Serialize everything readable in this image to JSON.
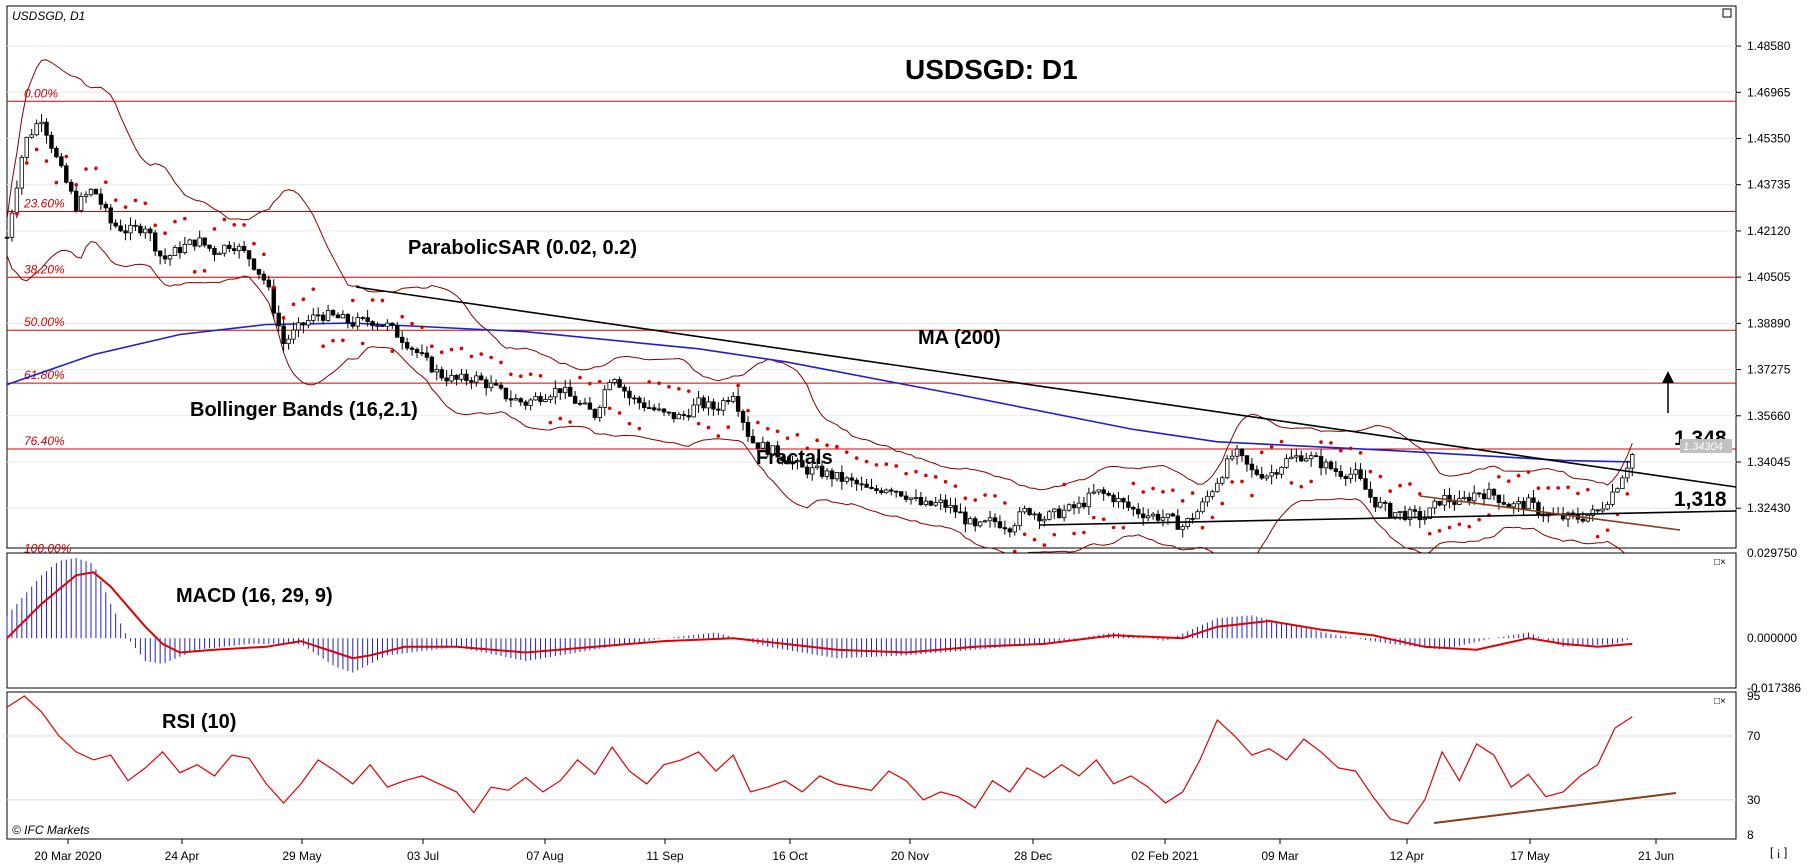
{
  "chart_data": [
    {
      "type": "candlestick",
      "title": "USDSGD: D1",
      "symbol_label": "USDSGD, D1",
      "y_ticks": [
        "1.48580",
        "1.46965",
        "1.45350",
        "1.43735",
        "1.42120",
        "1.40505",
        "1.38890",
        "1.37275",
        "1.35660",
        "1.34045",
        "1.32430"
      ],
      "ylim": [
        1.3104,
        1.4998
      ],
      "x_ticks": [
        "20 Mar 2020",
        "24 Apr",
        "29 May",
        "03 Jul",
        "07 Aug",
        "11 Sep",
        "16 Oct",
        "20 Nov",
        "28 Dec",
        "02 Feb 2021",
        "09 Mar",
        "12 Apr",
        "17 May",
        "21 Jun"
      ],
      "current_price": "1.34304",
      "fibonacci_levels": [
        {
          "label": "0.00%",
          "value": 1.4665
        },
        {
          "label": "23.60%",
          "value": 1.428
        },
        {
          "label": "38.20%",
          "value": 1.405
        },
        {
          "label": "50.00%",
          "value": 1.3865
        },
        {
          "label": "61.80%",
          "value": 1.368
        },
        {
          "label": "76.40%",
          "value": 1.345
        },
        {
          "label": "100.00%",
          "value": 1.3075
        }
      ],
      "indicators": {
        "parabolic_sar": "ParabolicSAR (0.02, 0.2)",
        "moving_average": "MA (200)",
        "bollinger": "Bollinger Bands (16,2.1)",
        "fractals": "Fractals"
      },
      "annotations": {
        "resistance": "1,348",
        "support": "1,318"
      },
      "price_path": [
        [
          0,
          1.419
        ],
        [
          0.01,
          1.452
        ],
        [
          0.02,
          1.461
        ],
        [
          0.03,
          1.444
        ],
        [
          0.04,
          1.43
        ],
        [
          0.05,
          1.436
        ],
        [
          0.06,
          1.424
        ],
        [
          0.07,
          1.421
        ],
        [
          0.08,
          1.423
        ],
        [
          0.09,
          1.411
        ],
        [
          0.1,
          1.415
        ],
        [
          0.11,
          1.418
        ],
        [
          0.12,
          1.414
        ],
        [
          0.13,
          1.417
        ],
        [
          0.14,
          1.412
        ],
        [
          0.15,
          1.403
        ],
        [
          0.16,
          1.382
        ],
        [
          0.17,
          1.388
        ],
        [
          0.18,
          1.392
        ],
        [
          0.19,
          1.391
        ],
        [
          0.2,
          1.389
        ],
        [
          0.21,
          1.39
        ],
        [
          0.22,
          1.388
        ],
        [
          0.23,
          1.383
        ],
        [
          0.24,
          1.377
        ],
        [
          0.25,
          1.371
        ],
        [
          0.26,
          1.369
        ],
        [
          0.27,
          1.37
        ],
        [
          0.28,
          1.367
        ],
        [
          0.29,
          1.363
        ],
        [
          0.3,
          1.361
        ],
        [
          0.31,
          1.364
        ],
        [
          0.32,
          1.366
        ],
        [
          0.33,
          1.361
        ],
        [
          0.34,
          1.357
        ],
        [
          0.35,
          1.372
        ],
        [
          0.36,
          1.363
        ],
        [
          0.37,
          1.36
        ],
        [
          0.38,
          1.357
        ],
        [
          0.39,
          1.356
        ],
        [
          0.4,
          1.361
        ],
        [
          0.41,
          1.359
        ],
        [
          0.42,
          1.365
        ],
        [
          0.43,
          1.348
        ],
        [
          0.44,
          1.345
        ],
        [
          0.45,
          1.342
        ],
        [
          0.46,
          1.338
        ],
        [
          0.47,
          1.337
        ],
        [
          0.48,
          1.335
        ],
        [
          0.49,
          1.333
        ],
        [
          0.5,
          1.33
        ],
        [
          0.51,
          1.332
        ],
        [
          0.52,
          1.329
        ],
        [
          0.53,
          1.325
        ],
        [
          0.54,
          1.326
        ],
        [
          0.55,
          1.323
        ],
        [
          0.56,
          1.317
        ],
        [
          0.57,
          1.32
        ],
        [
          0.58,
          1.318
        ],
        [
          0.59,
          1.324
        ],
        [
          0.6,
          1.321
        ],
        [
          0.61,
          1.323
        ],
        [
          0.62,
          1.325
        ],
        [
          0.63,
          1.33
        ],
        [
          0.64,
          1.328
        ],
        [
          0.65,
          1.324
        ],
        [
          0.66,
          1.322
        ],
        [
          0.67,
          1.321
        ],
        [
          0.68,
          1.318
        ],
        [
          0.69,
          1.324
        ],
        [
          0.7,
          1.334
        ],
        [
          0.71,
          1.344
        ],
        [
          0.72,
          1.337
        ],
        [
          0.73,
          1.336
        ],
        [
          0.74,
          1.341
        ],
        [
          0.75,
          1.343
        ],
        [
          0.76,
          1.34
        ],
        [
          0.77,
          1.337
        ],
        [
          0.78,
          1.336
        ],
        [
          0.79,
          1.327
        ],
        [
          0.8,
          1.323
        ],
        [
          0.81,
          1.322
        ],
        [
          0.82,
          1.321
        ],
        [
          0.83,
          1.328
        ],
        [
          0.84,
          1.326
        ],
        [
          0.85,
          1.33
        ],
        [
          0.86,
          1.329
        ],
        [
          0.87,
          1.325
        ],
        [
          0.88,
          1.326
        ],
        [
          0.89,
          1.322
        ],
        [
          0.9,
          1.321
        ],
        [
          0.91,
          1.321
        ],
        [
          0.92,
          1.323
        ],
        [
          0.93,
          1.331
        ],
        [
          0.94,
          1.343
        ]
      ]
    },
    {
      "type": "histogram",
      "label": "MACD (16, 29, 9)",
      "y_ticks": [
        "0.029750",
        "0.000000",
        "-0.017386"
      ],
      "ylim": [
        -0.01739,
        0.02975
      ],
      "signal_path": [
        [
          0,
          0.0
        ],
        [
          0.02,
          0.012
        ],
        [
          0.04,
          0.022
        ],
        [
          0.05,
          0.023
        ],
        [
          0.06,
          0.018
        ],
        [
          0.07,
          0.011
        ],
        [
          0.08,
          0.004
        ],
        [
          0.09,
          -0.002
        ],
        [
          0.1,
          -0.005
        ],
        [
          0.12,
          -0.004
        ],
        [
          0.15,
          -0.003
        ],
        [
          0.17,
          -0.001
        ],
        [
          0.19,
          -0.005
        ],
        [
          0.2,
          -0.007
        ],
        [
          0.21,
          -0.006
        ],
        [
          0.23,
          -0.003
        ],
        [
          0.26,
          -0.003
        ],
        [
          0.3,
          -0.005
        ],
        [
          0.34,
          -0.003
        ],
        [
          0.38,
          -0.001
        ],
        [
          0.42,
          0.0
        ],
        [
          0.45,
          -0.002
        ],
        [
          0.48,
          -0.004
        ],
        [
          0.52,
          -0.005
        ],
        [
          0.56,
          -0.003
        ],
        [
          0.6,
          -0.002
        ],
        [
          0.64,
          0.001
        ],
        [
          0.68,
          0.0
        ],
        [
          0.7,
          0.004
        ],
        [
          0.73,
          0.006
        ],
        [
          0.76,
          0.003
        ],
        [
          0.79,
          0.001
        ],
        [
          0.82,
          -0.003
        ],
        [
          0.85,
          -0.004
        ],
        [
          0.88,
          0.0
        ],
        [
          0.9,
          -0.002
        ],
        [
          0.92,
          -0.003
        ],
        [
          0.94,
          -0.002
        ]
      ],
      "histogram_path": [
        [
          0,
          0.008
        ],
        [
          0.02,
          0.022
        ],
        [
          0.03,
          0.027
        ],
        [
          0.04,
          0.028
        ],
        [
          0.05,
          0.026
        ],
        [
          0.06,
          0.012
        ],
        [
          0.07,
          0.0
        ],
        [
          0.08,
          -0.008
        ],
        [
          0.09,
          -0.009
        ],
        [
          0.11,
          -0.004
        ],
        [
          0.14,
          -0.002
        ],
        [
          0.17,
          -0.002
        ],
        [
          0.19,
          -0.01
        ],
        [
          0.2,
          -0.012
        ],
        [
          0.22,
          -0.006
        ],
        [
          0.26,
          -0.003
        ],
        [
          0.3,
          -0.008
        ],
        [
          0.34,
          -0.004
        ],
        [
          0.38,
          0.0
        ],
        [
          0.41,
          0.002
        ],
        [
          0.44,
          -0.003
        ],
        [
          0.48,
          -0.007
        ],
        [
          0.52,
          -0.006
        ],
        [
          0.56,
          -0.004
        ],
        [
          0.6,
          -0.002
        ],
        [
          0.64,
          0.002
        ],
        [
          0.67,
          -0.001
        ],
        [
          0.7,
          0.007
        ],
        [
          0.72,
          0.008
        ],
        [
          0.74,
          0.005
        ],
        [
          0.77,
          0.001
        ],
        [
          0.8,
          -0.002
        ],
        [
          0.83,
          -0.004
        ],
        [
          0.86,
          0.0
        ],
        [
          0.88,
          0.002
        ],
        [
          0.9,
          -0.003
        ],
        [
          0.93,
          -0.002
        ],
        [
          0.94,
          0.0
        ]
      ]
    },
    {
      "type": "line",
      "label": "RSI (10)",
      "y_ticks": [
        "95",
        "70",
        "30",
        "8"
      ],
      "ylim": [
        8,
        95
      ],
      "values_path": [
        [
          0,
          88
        ],
        [
          0.01,
          95
        ],
        [
          0.02,
          85
        ],
        [
          0.03,
          70
        ],
        [
          0.04,
          60
        ],
        [
          0.05,
          55
        ],
        [
          0.06,
          58
        ],
        [
          0.07,
          42
        ],
        [
          0.08,
          50
        ],
        [
          0.09,
          60
        ],
        [
          0.1,
          47
        ],
        [
          0.11,
          52
        ],
        [
          0.12,
          45
        ],
        [
          0.13,
          58
        ],
        [
          0.14,
          56
        ],
        [
          0.15,
          40
        ],
        [
          0.16,
          28
        ],
        [
          0.17,
          40
        ],
        [
          0.18,
          55
        ],
        [
          0.19,
          48
        ],
        [
          0.2,
          40
        ],
        [
          0.21,
          52
        ],
        [
          0.22,
          38
        ],
        [
          0.23,
          42
        ],
        [
          0.24,
          45
        ],
        [
          0.25,
          40
        ],
        [
          0.26,
          35
        ],
        [
          0.27,
          22
        ],
        [
          0.28,
          38
        ],
        [
          0.29,
          36
        ],
        [
          0.3,
          44
        ],
        [
          0.31,
          35
        ],
        [
          0.32,
          42
        ],
        [
          0.33,
          55
        ],
        [
          0.34,
          46
        ],
        [
          0.35,
          63
        ],
        [
          0.36,
          48
        ],
        [
          0.37,
          40
        ],
        [
          0.38,
          52
        ],
        [
          0.39,
          55
        ],
        [
          0.4,
          60
        ],
        [
          0.41,
          48
        ],
        [
          0.42,
          58
        ],
        [
          0.43,
          35
        ],
        [
          0.44,
          38
        ],
        [
          0.45,
          42
        ],
        [
          0.46,
          35
        ],
        [
          0.47,
          45
        ],
        [
          0.48,
          40
        ],
        [
          0.49,
          38
        ],
        [
          0.5,
          36
        ],
        [
          0.51,
          48
        ],
        [
          0.52,
          42
        ],
        [
          0.53,
          30
        ],
        [
          0.54,
          35
        ],
        [
          0.55,
          32
        ],
        [
          0.56,
          25
        ],
        [
          0.57,
          42
        ],
        [
          0.58,
          35
        ],
        [
          0.59,
          50
        ],
        [
          0.6,
          44
        ],
        [
          0.61,
          52
        ],
        [
          0.62,
          45
        ],
        [
          0.63,
          55
        ],
        [
          0.64,
          40
        ],
        [
          0.65,
          45
        ],
        [
          0.66,
          38
        ],
        [
          0.67,
          28
        ],
        [
          0.68,
          35
        ],
        [
          0.69,
          55
        ],
        [
          0.7,
          80
        ],
        [
          0.71,
          70
        ],
        [
          0.72,
          58
        ],
        [
          0.73,
          62
        ],
        [
          0.74,
          55
        ],
        [
          0.75,
          68
        ],
        [
          0.76,
          60
        ],
        [
          0.77,
          50
        ],
        [
          0.78,
          48
        ],
        [
          0.79,
          32
        ],
        [
          0.8,
          18
        ],
        [
          0.81,
          15
        ],
        [
          0.82,
          30
        ],
        [
          0.83,
          60
        ],
        [
          0.84,
          42
        ],
        [
          0.85,
          65
        ],
        [
          0.86,
          58
        ],
        [
          0.87,
          38
        ],
        [
          0.88,
          46
        ],
        [
          0.89,
          32
        ],
        [
          0.9,
          35
        ],
        [
          0.91,
          45
        ],
        [
          0.92,
          52
        ],
        [
          0.93,
          75
        ],
        [
          0.94,
          82
        ]
      ]
    }
  ],
  "branding": {
    "copyright": "© IFC Markets"
  }
}
